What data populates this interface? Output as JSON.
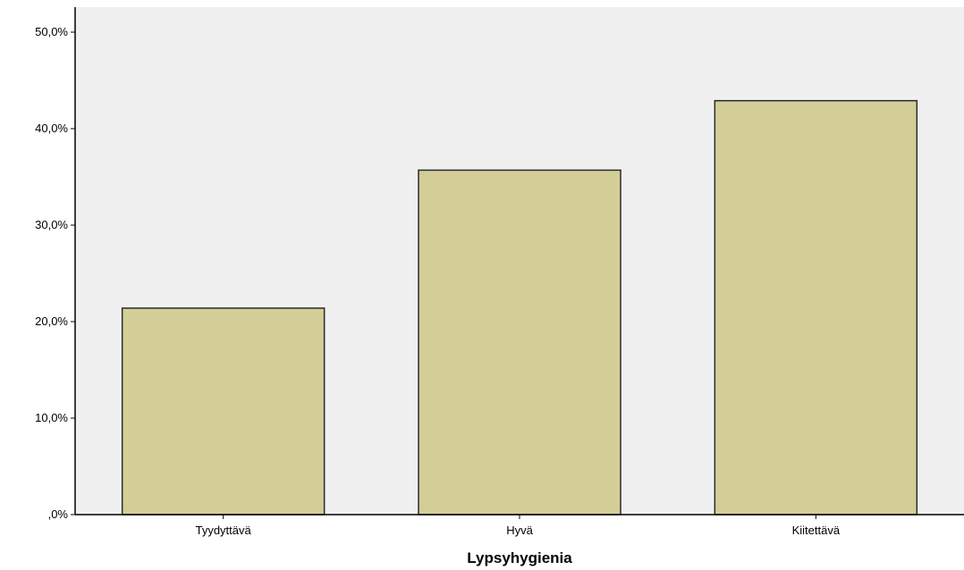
{
  "chart_data": {
    "type": "bar",
    "title": "",
    "xlabel": "Lypsyhygienia",
    "ylabel": "",
    "categories": [
      "Tyydyttävä",
      "Hyvä",
      "Kiitettävä"
    ],
    "values": [
      21.4,
      35.7,
      42.9
    ],
    "ylim": [
      0,
      50
    ],
    "yticks": [
      0,
      10,
      20,
      30,
      40,
      50
    ],
    "ytick_labels": [
      ",0%",
      "10,0%",
      "20,0%",
      "30,0%",
      "40,0%",
      "50,0%"
    ],
    "grid": false,
    "legend": "none",
    "colors": {
      "plot_background": "#f0f0f0",
      "bar_fill": "#d3cd98",
      "bar_stroke": "#2a2a2a",
      "axis": "#000000"
    }
  }
}
